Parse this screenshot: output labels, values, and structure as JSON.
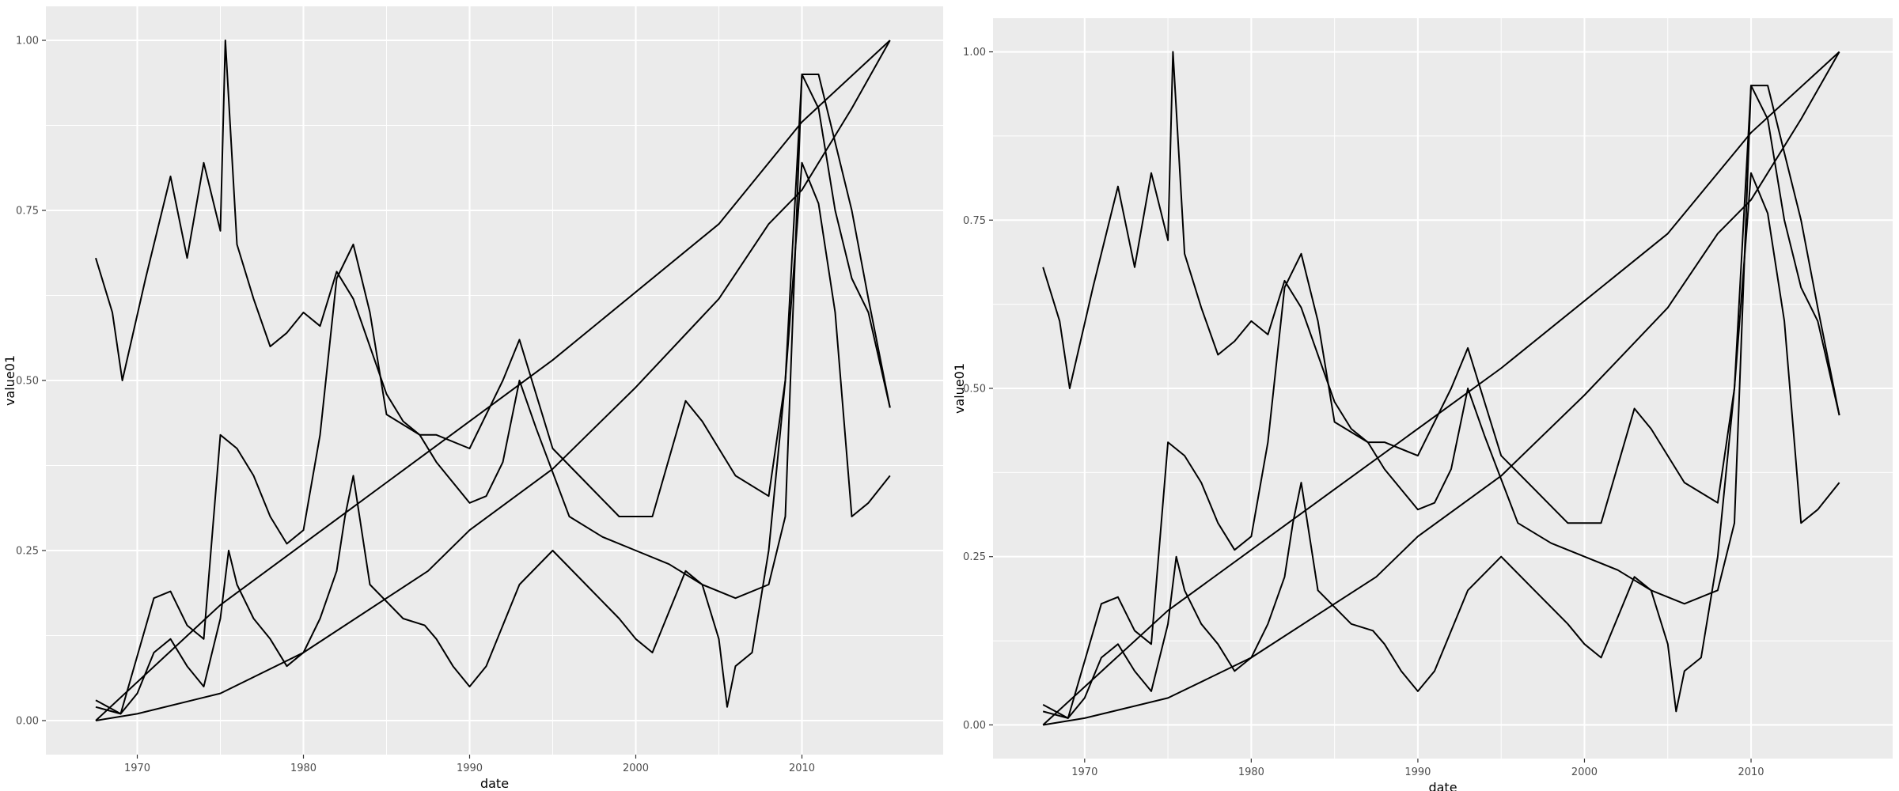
{
  "chart_data": [
    {
      "type": "line",
      "xlabel": "date",
      "ylabel": "value01",
      "xlim": [
        1964.5,
        2018.5
      ],
      "ylim": [
        -0.05,
        1.05
      ],
      "x_ticks": [
        1970,
        1980,
        1990,
        2000,
        2010
      ],
      "x_tick_labels": [
        "1970",
        "1980",
        "1990",
        "2000",
        "2010"
      ],
      "y_ticks": [
        0,
        0.25,
        0.5,
        0.75,
        1
      ],
      "y_tick_labels": [
        "0.00",
        "0.25",
        "0.50",
        "0.75",
        "1.00"
      ],
      "grid": true,
      "legend": "none",
      "series": [
        {
          "x": [
            1967.5,
            1975,
            1985,
            1995,
            2005,
            2010,
            2015.3
          ],
          "values": [
            0.0,
            0.17,
            0.35,
            0.53,
            0.73,
            0.88,
            1.0
          ]
        },
        {
          "x": [
            1967.5,
            1970,
            1975,
            1980,
            1985,
            1987.5,
            1990,
            1995,
            2000,
            2005,
            2008,
            2010,
            2013,
            2015.3
          ],
          "values": [
            0.0,
            0.01,
            0.04,
            0.1,
            0.18,
            0.22,
            0.28,
            0.37,
            0.49,
            0.62,
            0.73,
            0.78,
            0.9,
            1.0
          ]
        },
        {
          "x": [
            1967.5,
            1968.5,
            1969.1,
            1970.5,
            1972,
            1973,
            1974,
            1975,
            1975.3,
            1976,
            1977,
            1978,
            1979,
            1980,
            1981,
            1982,
            1983,
            1985,
            1986,
            1987,
            1988,
            1990,
            1991,
            1992,
            1993,
            1994,
            1996,
            1998,
            2000,
            2002,
            2004,
            2006,
            2008,
            2009,
            2010,
            2011,
            2012,
            2013,
            2014,
            2015.3
          ],
          "values": [
            0.68,
            0.6,
            0.5,
            0.65,
            0.8,
            0.68,
            0.82,
            0.72,
            1.0,
            0.7,
            0.62,
            0.55,
            0.57,
            0.6,
            0.58,
            0.66,
            0.62,
            0.48,
            0.44,
            0.42,
            0.38,
            0.32,
            0.33,
            0.38,
            0.5,
            0.43,
            0.3,
            0.27,
            0.25,
            0.23,
            0.2,
            0.18,
            0.2,
            0.3,
            0.95,
            0.9,
            0.75,
            0.65,
            0.6,
            0.46
          ]
        },
        {
          "x": [
            1967.5,
            1969,
            1971,
            1972,
            1973,
            1974,
            1975,
            1976,
            1977,
            1978,
            1979,
            1980,
            1981,
            1982,
            1983,
            1984,
            1985,
            1987,
            1988,
            1990,
            1992,
            1993,
            1995,
            1997,
            1999,
            2001,
            2003,
            2004,
            2006,
            2008,
            2009,
            2010,
            2011,
            2012,
            2013,
            2014,
            2015.3
          ],
          "values": [
            0.02,
            0.01,
            0.18,
            0.19,
            0.14,
            0.12,
            0.42,
            0.4,
            0.36,
            0.3,
            0.26,
            0.28,
            0.42,
            0.65,
            0.7,
            0.6,
            0.45,
            0.42,
            0.42,
            0.4,
            0.5,
            0.56,
            0.4,
            0.35,
            0.3,
            0.3,
            0.47,
            0.44,
            0.36,
            0.33,
            0.5,
            0.95,
            0.95,
            0.85,
            0.75,
            0.62,
            0.46
          ]
        },
        {
          "x": [
            1967.5,
            1969,
            1970,
            1971,
            1972,
            1973,
            1974,
            1975,
            1975.5,
            1976,
            1977,
            1978,
            1979,
            1980,
            1981,
            1982,
            1982.5,
            1983,
            1984,
            1986,
            1987.3,
            1988,
            1989,
            1990,
            1991,
            1993,
            1995,
            1997,
            1999,
            2000,
            2001,
            2003,
            2004,
            2005,
            2005.5,
            2006,
            2007,
            2008,
            2009,
            2010,
            2011,
            2012,
            2013,
            2014,
            2015.3
          ],
          "values": [
            0.03,
            0.01,
            0.04,
            0.1,
            0.12,
            0.08,
            0.05,
            0.15,
            0.25,
            0.2,
            0.15,
            0.12,
            0.08,
            0.1,
            0.15,
            0.22,
            0.3,
            0.36,
            0.2,
            0.15,
            0.14,
            0.12,
            0.08,
            0.05,
            0.08,
            0.2,
            0.25,
            0.2,
            0.15,
            0.12,
            0.1,
            0.22,
            0.2,
            0.12,
            0.02,
            0.08,
            0.1,
            0.25,
            0.5,
            0.82,
            0.76,
            0.6,
            0.3,
            0.32,
            0.36
          ]
        }
      ]
    },
    {
      "type": "line",
      "xlabel": "date",
      "ylabel": "value01",
      "xlim": [
        1964.5,
        2018.5
      ],
      "ylim": [
        -0.05,
        1.05
      ],
      "x_ticks": [
        1970,
        1980,
        1990,
        2000,
        2010
      ],
      "x_tick_labels": [
        "1970",
        "1980",
        "1990",
        "2000",
        "2010"
      ],
      "y_ticks": [
        0,
        0.25,
        0.5,
        0.75,
        1
      ],
      "y_tick_labels": [
        "0.00",
        "0.25",
        "0.50",
        "0.75",
        "1.00"
      ],
      "grid": true,
      "legend": "none",
      "series": [
        {
          "x": [
            1967.5,
            1975,
            1985,
            1995,
            2005,
            2010,
            2015.3
          ],
          "values": [
            0.0,
            0.17,
            0.35,
            0.53,
            0.73,
            0.88,
            1.0
          ]
        },
        {
          "x": [
            1967.5,
            1970,
            1975,
            1980,
            1985,
            1987.5,
            1990,
            1995,
            2000,
            2005,
            2008,
            2010,
            2013,
            2015.3
          ],
          "values": [
            0.0,
            0.01,
            0.04,
            0.1,
            0.18,
            0.22,
            0.28,
            0.37,
            0.49,
            0.62,
            0.73,
            0.78,
            0.9,
            1.0
          ]
        },
        {
          "x": [
            1967.5,
            1968.5,
            1969.1,
            1970.5,
            1972,
            1973,
            1974,
            1975,
            1975.3,
            1976,
            1977,
            1978,
            1979,
            1980,
            1981,
            1982,
            1983,
            1985,
            1986,
            1987,
            1988,
            1990,
            1991,
            1992,
            1993,
            1994,
            1996,
            1998,
            2000,
            2002,
            2004,
            2006,
            2008,
            2009,
            2010,
            2011,
            2012,
            2013,
            2014,
            2015.3
          ],
          "values": [
            0.68,
            0.6,
            0.5,
            0.65,
            0.8,
            0.68,
            0.82,
            0.72,
            1.0,
            0.7,
            0.62,
            0.55,
            0.57,
            0.6,
            0.58,
            0.66,
            0.62,
            0.48,
            0.44,
            0.42,
            0.38,
            0.32,
            0.33,
            0.38,
            0.5,
            0.43,
            0.3,
            0.27,
            0.25,
            0.23,
            0.2,
            0.18,
            0.2,
            0.3,
            0.95,
            0.9,
            0.75,
            0.65,
            0.6,
            0.46
          ]
        },
        {
          "x": [
            1967.5,
            1969,
            1971,
            1972,
            1973,
            1974,
            1975,
            1976,
            1977,
            1978,
            1979,
            1980,
            1981,
            1982,
            1983,
            1984,
            1985,
            1987,
            1988,
            1990,
            1992,
            1993,
            1995,
            1997,
            1999,
            2001,
            2003,
            2004,
            2006,
            2008,
            2009,
            2010,
            2011,
            2012,
            2013,
            2014,
            2015.3
          ],
          "values": [
            0.02,
            0.01,
            0.18,
            0.19,
            0.14,
            0.12,
            0.42,
            0.4,
            0.36,
            0.3,
            0.26,
            0.28,
            0.42,
            0.65,
            0.7,
            0.6,
            0.45,
            0.42,
            0.42,
            0.4,
            0.5,
            0.56,
            0.4,
            0.35,
            0.3,
            0.3,
            0.47,
            0.44,
            0.36,
            0.33,
            0.5,
            0.95,
            0.95,
            0.85,
            0.75,
            0.62,
            0.46
          ]
        },
        {
          "x": [
            1967.5,
            1969,
            1970,
            1971,
            1972,
            1973,
            1974,
            1975,
            1975.5,
            1976,
            1977,
            1978,
            1979,
            1980,
            1981,
            1982,
            1982.5,
            1983,
            1984,
            1986,
            1987.3,
            1988,
            1989,
            1990,
            1991,
            1993,
            1995,
            1997,
            1999,
            2000,
            2001,
            2003,
            2004,
            2005,
            2005.5,
            2006,
            2007,
            2008,
            2009,
            2010,
            2011,
            2012,
            2013,
            2014,
            2015.3
          ],
          "values": [
            0.03,
            0.01,
            0.04,
            0.1,
            0.12,
            0.08,
            0.05,
            0.15,
            0.25,
            0.2,
            0.15,
            0.12,
            0.08,
            0.1,
            0.15,
            0.22,
            0.3,
            0.36,
            0.2,
            0.15,
            0.14,
            0.12,
            0.08,
            0.05,
            0.08,
            0.2,
            0.25,
            0.2,
            0.15,
            0.12,
            0.1,
            0.22,
            0.2,
            0.12,
            0.02,
            0.08,
            0.1,
            0.25,
            0.5,
            0.82,
            0.76,
            0.6,
            0.3,
            0.32,
            0.36
          ]
        }
      ]
    }
  ]
}
